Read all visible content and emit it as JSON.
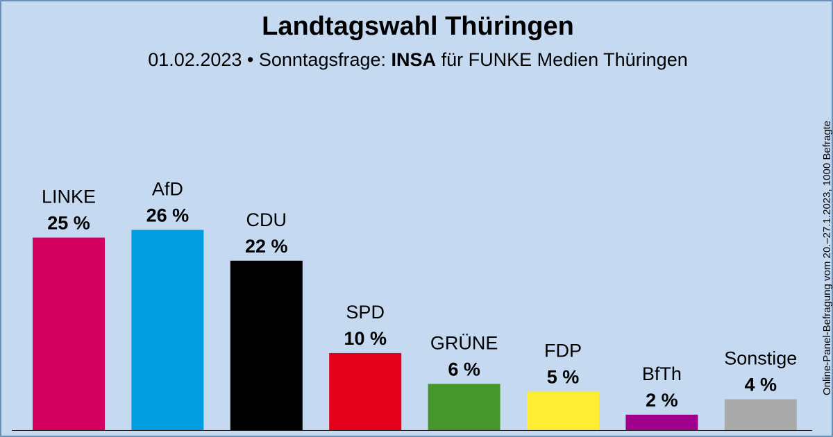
{
  "title": "Landtagswahl Thüringen",
  "subtitle": {
    "date": "01.02.2023",
    "separator": "•",
    "prefix": "Sonntagsfrage:",
    "institute": "INSA",
    "suffix": "für FUNKE Medien Thüringen"
  },
  "side_note": "Online-Panel-Befragung vom 20.–27.1.2023, 1000 Befragte",
  "chart_data": {
    "type": "bar",
    "title": "Landtagswahl Thüringen",
    "unit": "%",
    "categories": [
      "LINKE",
      "AfD",
      "CDU",
      "SPD",
      "GRÜNE",
      "FDP",
      "BfTh",
      "Sonstige"
    ],
    "values": [
      25,
      26,
      22,
      10,
      6,
      5,
      2,
      4
    ],
    "value_labels": [
      "25 %",
      "26 %",
      "22 %",
      "10 %",
      "6 %",
      "5 %",
      "2 %",
      "4 %"
    ],
    "colors": [
      "#d40060",
      "#009ee0",
      "#000000",
      "#e3001b",
      "#46962b",
      "#ffed33",
      "#a0008c",
      "#aaaaaa"
    ],
    "grid": false,
    "legend": "none"
  }
}
